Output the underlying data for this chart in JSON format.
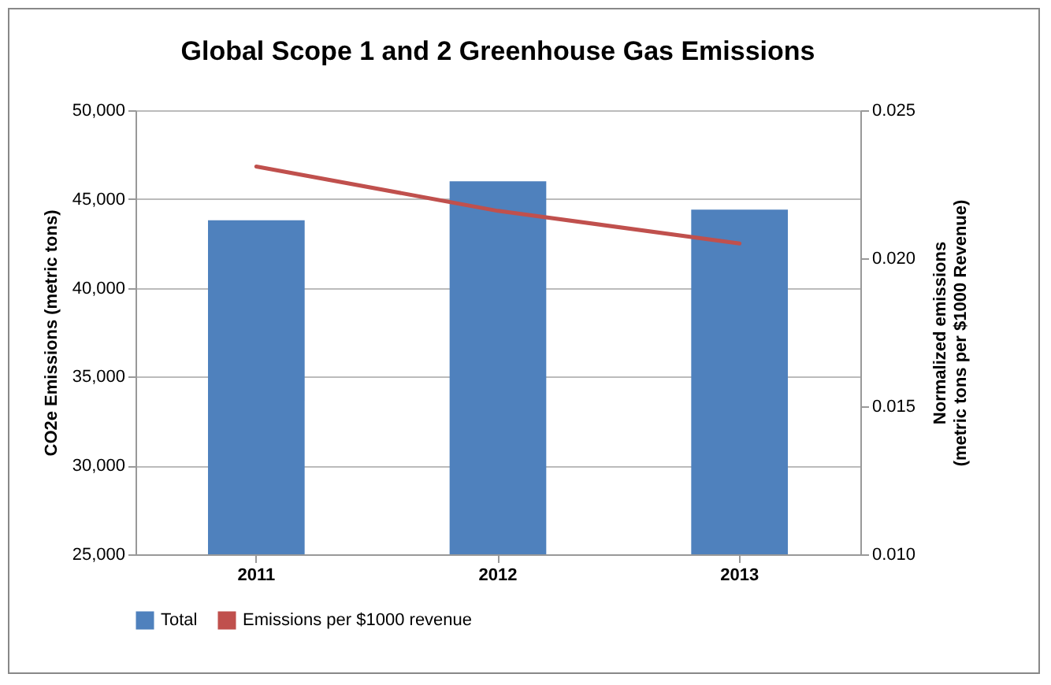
{
  "chart_data": {
    "type": "bar",
    "title": "Global Scope 1 and 2 Greenhouse Gas Emissions",
    "ylabel": "CO2e Emissions (metric tons)",
    "y2label": "Normalized emissions\n(metric tons per $1000 Revenue)",
    "categories": [
      "2011",
      "2012",
      "2013"
    ],
    "series": [
      {
        "name": "Total",
        "color": "#4f81bd",
        "values": [
          43800,
          46000,
          44400
        ]
      },
      {
        "name": "Emissions per $1000 revenue",
        "type": "line",
        "axis": "y2",
        "color": "#c0504d",
        "values": [
          0.0231,
          0.0216,
          0.0205
        ]
      }
    ],
    "ylim": [
      25000,
      50000
    ],
    "yticks": [
      {
        "value": 25000,
        "label": "25,000"
      },
      {
        "value": 30000,
        "label": "30,000"
      },
      {
        "value": 35000,
        "label": "35,000"
      },
      {
        "value": 40000,
        "label": "40,000"
      },
      {
        "value": 45000,
        "label": "45,000"
      },
      {
        "value": 50000,
        "label": "50,000"
      }
    ],
    "y2lim": [
      0.01,
      0.025
    ],
    "y2ticks": [
      {
        "value": 0.01,
        "label": "0.010"
      },
      {
        "value": 0.015,
        "label": "0.015"
      },
      {
        "value": 0.02,
        "label": "0.020"
      },
      {
        "value": 0.025,
        "label": "0.025"
      }
    ],
    "grid": "y",
    "legend": "bottom",
    "marker": "none",
    "line_style": "solid"
  }
}
